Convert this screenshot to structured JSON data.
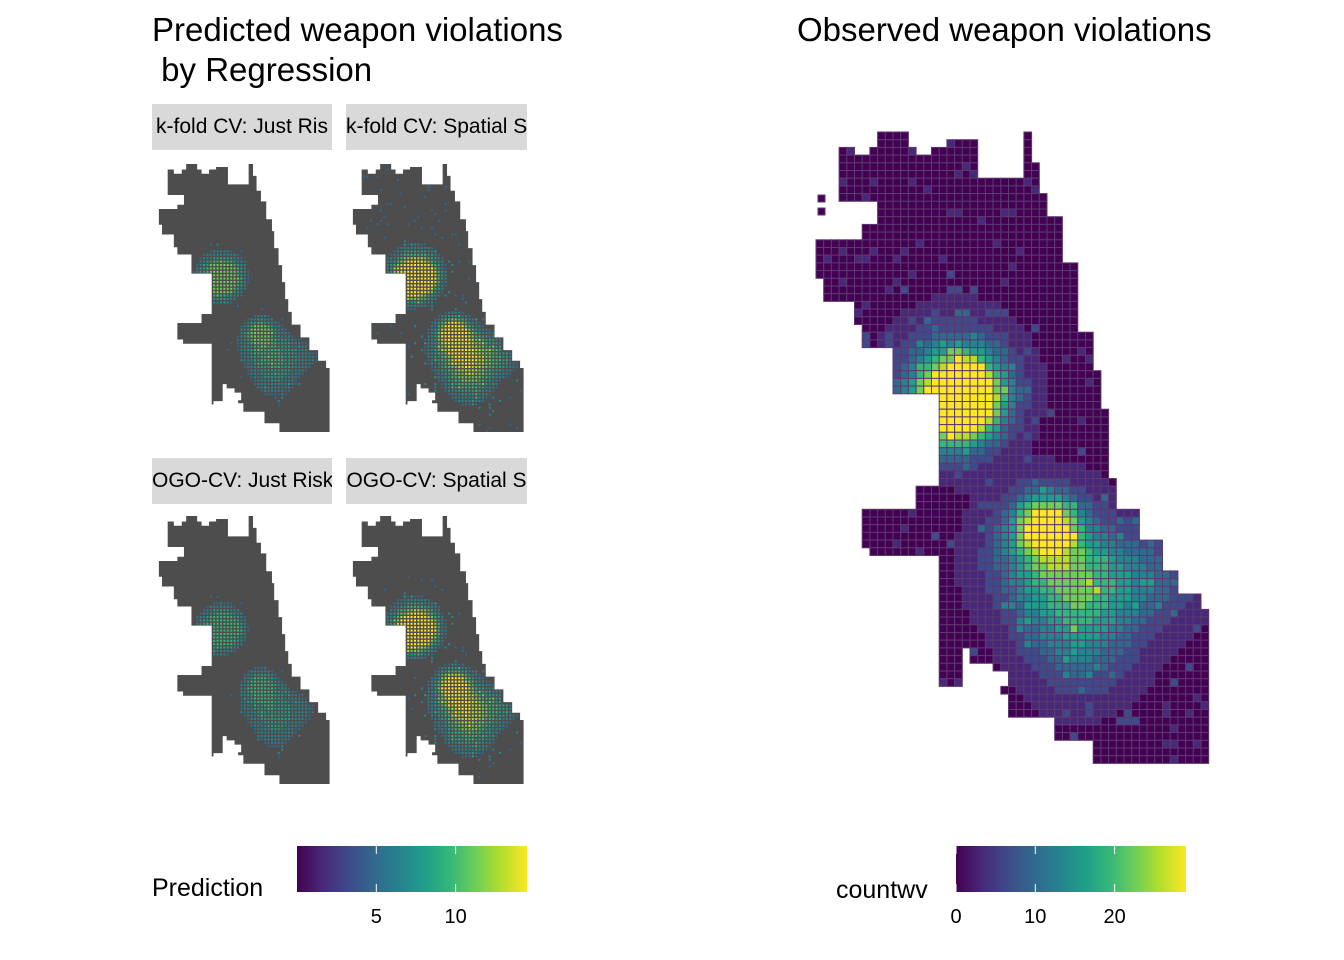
{
  "left_panel": {
    "title": "Predicted weapon violations\n by Regression",
    "facets": [
      {
        "label": "k-fold CV: Just Risk Factors",
        "visible_label": "k-fold CV: Just Ris"
      },
      {
        "label": "k-fold CV: Spatial Structure",
        "visible_label": "k-fold CV: Spatial S"
      },
      {
        "label": "LOGO-CV: Just Risk Factors",
        "visible_label": "OGO-CV: Just Risk"
      },
      {
        "label": "LOGO-CV: Spatial Structure",
        "visible_label": "OGO-CV: Spatial S"
      }
    ],
    "legend": {
      "title": "Prediction",
      "ticks": [
        "5",
        "10"
      ],
      "tick_values": [
        5,
        10
      ],
      "range": [
        0,
        14.5
      ]
    }
  },
  "right_panel": {
    "title": "Observed weapon violations",
    "legend": {
      "title": "countwv",
      "ticks": [
        "0",
        "10",
        "20"
      ],
      "tick_values": [
        0,
        10,
        20
      ],
      "range": [
        0,
        29
      ]
    }
  },
  "colors": {
    "viridis": [
      "#440154",
      "#482878",
      "#3e4a89",
      "#31688e",
      "#26828e",
      "#1f9e89",
      "#35b779",
      "#6ece58",
      "#b5de2b",
      "#fde725"
    ],
    "facet_strip": "#d9d9d9",
    "observed_grid_line": "#5b3a6e",
    "prediction_fill": "#4d4d4d"
  }
}
